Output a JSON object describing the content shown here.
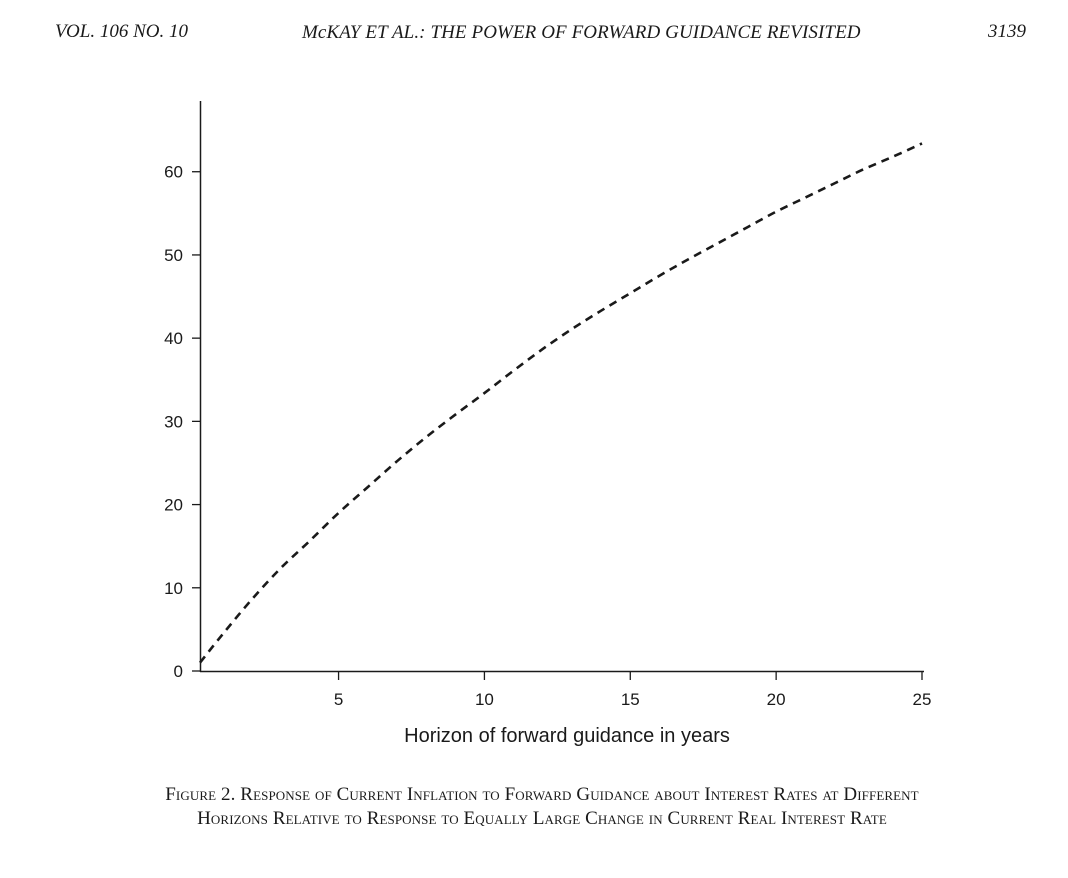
{
  "header": {
    "volume": "VOL. 106 NO. 10",
    "title": "McKAY ET AL.: THE POWER OF FORWARD GUIDANCE REVISITED",
    "page_number": "3139"
  },
  "caption": {
    "line1": "Figure 2. Response of Current Inflation to Forward Guidance about Interest Rates at Different",
    "line2": "Horizons Relative to Response to Equally Large Change in Current Real Interest Rate"
  },
  "chart_data": {
    "type": "line",
    "title": "",
    "xlabel": "Horizon of forward guidance in years",
    "ylabel": "",
    "xlim": [
      0.25,
      25
    ],
    "ylim": [
      0,
      68.5
    ],
    "xticks": [
      5,
      10,
      15,
      20,
      25
    ],
    "yticks": [
      0,
      10,
      20,
      30,
      40,
      50,
      60
    ],
    "grid": false,
    "legend": "none",
    "line_style": "dashed",
    "line_color": "#1a1a1a",
    "series": [
      {
        "x": [
          0.25,
          1,
          2,
          3,
          4,
          5,
          6,
          7,
          8,
          9,
          10,
          11,
          12,
          13,
          14,
          15,
          16,
          17,
          18,
          19,
          20,
          21,
          22,
          23,
          24,
          25
        ],
        "values": [
          1.0,
          4.3,
          8.5,
          12.3,
          15.6,
          19.0,
          22.1,
          25.2,
          28.1,
          30.8,
          33.4,
          36.1,
          38.7,
          41.1,
          43.3,
          45.4,
          47.5,
          49.5,
          51.4,
          53.3,
          55.2,
          56.9,
          58.6,
          60.3,
          61.8,
          63.4
        ]
      }
    ]
  }
}
